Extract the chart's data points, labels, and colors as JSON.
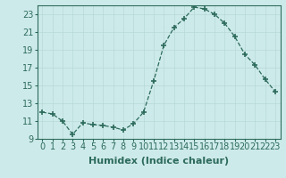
{
  "x": [
    0,
    1,
    2,
    3,
    4,
    5,
    6,
    7,
    8,
    9,
    10,
    11,
    12,
    13,
    14,
    15,
    16,
    17,
    18,
    19,
    20,
    21,
    22,
    23
  ],
  "y": [
    12.0,
    11.8,
    11.0,
    9.5,
    10.8,
    10.6,
    10.5,
    10.3,
    10.0,
    10.7,
    12.0,
    15.5,
    19.5,
    21.5,
    22.5,
    23.8,
    23.6,
    23.0,
    22.0,
    20.5,
    18.5,
    17.3,
    15.7,
    14.3
  ],
  "line_color": "#2d6b5c",
  "marker": "+",
  "marker_size": 4,
  "bg_color": "#cdeaea",
  "grid_color": "#b8d8d8",
  "xlabel": "Humidex (Indice chaleur)",
  "xlabel_fontsize": 8,
  "tick_fontsize": 7,
  "ylim": [
    9,
    24
  ],
  "yticks": [
    9,
    11,
    13,
    15,
    17,
    19,
    21,
    23
  ],
  "xticks": [
    0,
    1,
    2,
    3,
    4,
    5,
    6,
    7,
    8,
    9,
    10,
    11,
    12,
    13,
    14,
    15,
    16,
    17,
    18,
    19,
    20,
    21,
    22,
    23
  ]
}
